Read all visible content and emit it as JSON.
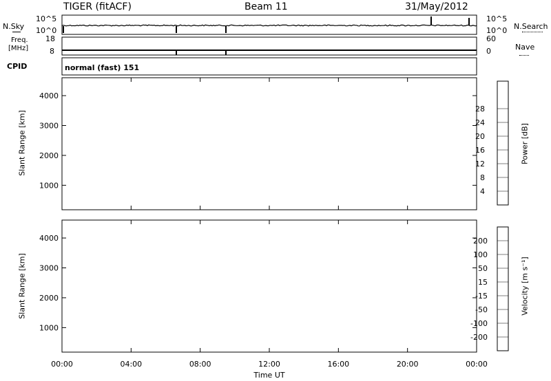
{
  "header": {
    "radar": "TIGER (fitACF)",
    "beam": "Beam 11",
    "date": "31/May/2012"
  },
  "strip_nsky": {
    "left_label": "N.Sky",
    "left_ticks": [
      "10^5",
      "10^0"
    ],
    "right_label": "N.Search",
    "right_ticks": [
      "10^5",
      "10^0"
    ]
  },
  "strip_freq": {
    "left_label_1": "Freq.",
    "left_label_2": "[MHz]",
    "left_ticks": [
      "18",
      "8"
    ],
    "right_label": "Nave",
    "right_ticks": [
      "60",
      "0"
    ]
  },
  "cpid": {
    "label": "CPID",
    "mode": "normal (fast) 151"
  },
  "chart_data": [
    {
      "type": "heatmap",
      "name": "power",
      "ylabel": "Slant Range [km]",
      "xlabel": "",
      "ylim": [
        180,
        4600
      ],
      "yticks": [
        "1000",
        "2000",
        "3000",
        "4000"
      ],
      "xticks": [
        "00:00",
        "04:00",
        "08:00",
        "12:00",
        "16:00",
        "20:00",
        "00:00"
      ],
      "colorbar": {
        "label": "Power [dB]",
        "ticks": [
          "4",
          "8",
          "12",
          "16",
          "20",
          "24",
          "28"
        ],
        "range": [
          0,
          32
        ],
        "colors": [
          "#0000ff",
          "#2040a0",
          "#2f7f4f",
          "#40a040",
          "#90c030",
          "#f0e020",
          "#f0a020",
          "#f06010",
          "#ff0000"
        ]
      }
    },
    {
      "type": "heatmap",
      "name": "velocity",
      "ylabel": "Slant Range [km]",
      "xlabel": "Time UT",
      "ylim": [
        180,
        4600
      ],
      "yticks": [
        "1000",
        "2000",
        "3000",
        "4000"
      ],
      "xticks": [
        "00:00",
        "04:00",
        "08:00",
        "12:00",
        "16:00",
        "20:00",
        "00:00"
      ],
      "colorbar": {
        "label": "Velocity [m s⁻¹]",
        "ticks": [
          "200",
          "100",
          "50",
          "15",
          "-15",
          "-50",
          "-100",
          "-200"
        ],
        "colors": [
          "#0000d0",
          "#2050d0",
          "#40a040",
          "#80d040",
          "#c8c8c0",
          "#f0c040",
          "#f08020",
          "#f04010",
          "#ff0000"
        ]
      }
    }
  ]
}
